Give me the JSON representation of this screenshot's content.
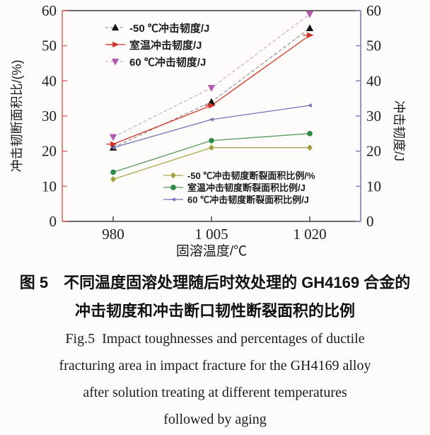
{
  "figure": {
    "caption_zh_line1": "图 5　不同温度固溶处理随后时效处理的 GH4169 合金的",
    "caption_zh_line2": "冲击韧度和冲击断口韧性断裂面积的比例",
    "caption_en_line1": "Fig.5  Impact toughnesses and percentages of ductile",
    "caption_en_line2": "fracturing area in impact fracture for the GH4169 alloy",
    "caption_en_line3": "after solution treating at different temperatures",
    "caption_en_line4": "followed by aging"
  },
  "chart_data": {
    "type": "line",
    "title": "",
    "xlabel": "固溶温度/℃",
    "ylabel_left": "冲击韧断面积比/(%)",
    "ylabel_right": "冲击韧度/J",
    "x_categories": [
      "980",
      "1 005",
      "1 020"
    ],
    "x_values": [
      980,
      1005,
      1020
    ],
    "ylim": [
      0,
      60
    ],
    "yticks": [
      0,
      10,
      20,
      30,
      40,
      50,
      60
    ],
    "grid": false,
    "legend_top_position": "upper-left-inside",
    "legend_bottom_position": "lower-right-inside",
    "axis_colors": {
      "left": "#e0685e",
      "right": "#8677b6",
      "top": "#3c3c3c",
      "bottom": "#3c3c3c"
    },
    "text_color": "#1d1d1d",
    "series": [
      {
        "name": "-50 ℃冲击韧度/J",
        "values": [
          21,
          34,
          55
        ],
        "marker": "triangle-up",
        "color": "#161616",
        "line_color": "#9a9a9a",
        "line_style": "dashed",
        "marker_size": 5.5,
        "axis": "right"
      },
      {
        "name": "室温冲击韧度/J",
        "values": [
          22,
          33,
          53
        ],
        "marker": "arrow-right",
        "color": "#d13228",
        "line_color": "#d13228",
        "line_style": "solid",
        "marker_size": 5.5,
        "axis": "right"
      },
      {
        "name": "60 ℃冲击韧度/J",
        "values": [
          24,
          38,
          59
        ],
        "marker": "triangle-down",
        "color": "#b55ab0",
        "line_color": "#c9b4c9",
        "line_style": "dashed",
        "marker_size": 5.5,
        "axis": "right"
      },
      {
        "name": "-50 ℃冲击韧度断裂面积比例/%",
        "values": [
          12,
          21,
          21
        ],
        "marker": "diamond",
        "color": "#a29f3c",
        "line_color": "#aaa84f",
        "line_style": "solid",
        "marker_size": 4.5,
        "axis": "left"
      },
      {
        "name": "室温冲击韧度断裂面积比例/J",
        "values": [
          14,
          23,
          25
        ],
        "marker": "circle",
        "color": "#2e8b47",
        "line_color": "#55975f",
        "line_style": "solid",
        "marker_size": 4.5,
        "axis": "left"
      },
      {
        "name": "60 ℃冲击韧度断裂面积比例/J",
        "values": [
          21,
          29,
          33
        ],
        "marker": "triangle-left",
        "color": "#7472b8",
        "line_color": "#7472b8",
        "line_style": "solid",
        "marker_size": 3.5,
        "axis": "left"
      }
    ]
  }
}
